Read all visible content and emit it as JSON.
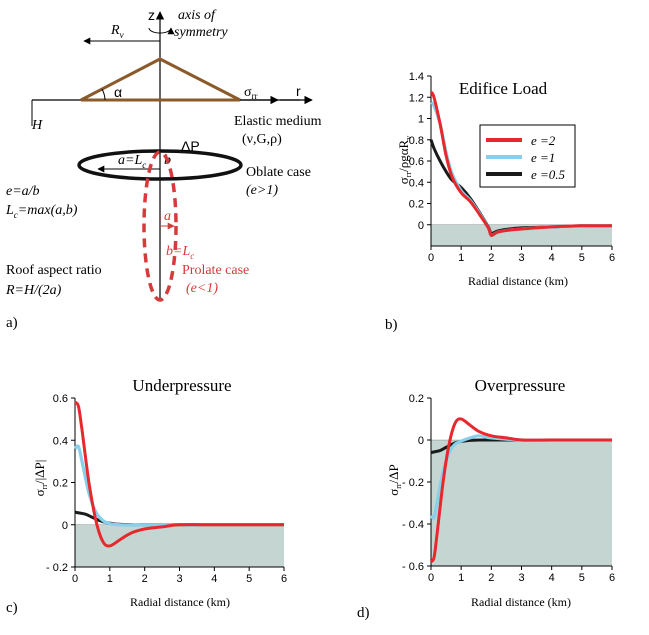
{
  "schematic": {
    "z": "z",
    "axis_line1": "axis of",
    "axis_line2": "symmetry",
    "Rv": "R",
    "Rv_sub": "v",
    "alpha": "α",
    "sigma": "σ",
    "sigma_sub": "rr",
    "r": "r",
    "H": "H",
    "elastic1": "Elastic medium",
    "elastic2": "(ν,G,ρ)",
    "a_eq_Lc": "a=L",
    "a_eq_Lc_sub": "c",
    "b": "b",
    "dP": "ΔP",
    "oblate1": "Oblate case",
    "oblate2": "(e>1)",
    "e_def": "e=a/b",
    "Lc_def": "L",
    "Lc_def_sub": "c",
    "Lc_def_rest": "=max(a,b)",
    "a_small": "a",
    "b_eq_Lc": "b=L",
    "b_eq_Lc_sub": "c",
    "roof1": "Roof aspect ratio",
    "roof2": "R=H/(2a)",
    "prolate1": "Prolate case",
    "prolate2": "(e<1)",
    "brown": "#8B5A2B",
    "red": "#D63A3A"
  },
  "panel_labels": {
    "a": "a)",
    "b": "b)",
    "c": "c)",
    "d": "d)"
  },
  "legend": [
    {
      "label": "e =2",
      "color": "#E8282D"
    },
    {
      "label": "e =1",
      "color": "#88CFEB"
    },
    {
      "label": "e =0.5",
      "color": "#1A1A1A"
    }
  ],
  "fill_color": "#C5D6D2",
  "chart_data": [
    {
      "type": "line",
      "title": "Edifice Load",
      "xlabel": "Radial distance (km)",
      "ylabel": "σrr/ρgαRv",
      "xlim": [
        0,
        6
      ],
      "ylim": [
        -0.2,
        1.4
      ],
      "xticks": [
        0,
        1,
        2,
        3,
        4,
        5,
        6
      ],
      "yticks": [
        0,
        0.2,
        0.4,
        0.6,
        0.8,
        1,
        1.2,
        1.4
      ],
      "yticklabels": [
        "0",
        "0.2",
        "0.4",
        "0.6",
        "0.8",
        "1",
        "1.2",
        "1.4"
      ],
      "series": [
        {
          "name": "e =2",
          "x": [
            0,
            0.1,
            0.3,
            0.5,
            0.7,
            1.0,
            1.3,
            1.6,
            1.9,
            2.0,
            2.2,
            2.6,
            3.0,
            4.0,
            5.0,
            6.0
          ],
          "y": [
            1.25,
            1.2,
            0.95,
            0.65,
            0.45,
            0.3,
            0.22,
            0.1,
            -0.03,
            -0.1,
            -0.07,
            -0.05,
            -0.04,
            -0.02,
            -0.01,
            -0.01
          ]
        },
        {
          "name": "e =1",
          "x": [
            0,
            0.1,
            0.3,
            0.5,
            0.7,
            1.0,
            1.3,
            1.6,
            1.9,
            2.0,
            2.2,
            2.6,
            3.0,
            4.0,
            5.0,
            6.0
          ],
          "y": [
            1.15,
            1.12,
            0.95,
            0.68,
            0.48,
            0.32,
            0.23,
            0.11,
            -0.03,
            -0.1,
            -0.07,
            -0.05,
            -0.04,
            -0.02,
            -0.01,
            -0.01
          ]
        },
        {
          "name": "e =0.5",
          "x": [
            0,
            0.1,
            0.3,
            0.5,
            0.7,
            1.0,
            1.3,
            1.6,
            1.9,
            2.0,
            2.2,
            2.6,
            3.0,
            4.0,
            5.0,
            6.0
          ],
          "y": [
            0.8,
            0.72,
            0.6,
            0.5,
            0.42,
            0.35,
            0.25,
            0.12,
            -0.02,
            -0.08,
            -0.06,
            -0.04,
            -0.03,
            -0.02,
            -0.01,
            -0.01
          ]
        }
      ]
    },
    {
      "type": "line",
      "title": "Underpressure",
      "xlabel": "Radial distance (km)",
      "ylabel": "σrr/|ΔP|",
      "xlim": [
        0,
        6
      ],
      "ylim": [
        -0.2,
        0.6
      ],
      "xticks": [
        0,
        1,
        2,
        3,
        4,
        5,
        6
      ],
      "yticks": [
        -0.2,
        0,
        0.2,
        0.4,
        0.6
      ],
      "yticklabels": [
        "- 0.2",
        "0",
        "0.2",
        "0.4",
        "0.6"
      ],
      "series": [
        {
          "name": "e =2",
          "x": [
            0,
            0.1,
            0.2,
            0.4,
            0.6,
            0.8,
            1.0,
            1.3,
            1.6,
            2.0,
            2.5,
            3.0,
            4.0,
            5.0,
            6.0
          ],
          "y": [
            0.58,
            0.56,
            0.45,
            0.2,
            0.02,
            -0.08,
            -0.1,
            -0.07,
            -0.04,
            -0.02,
            -0.01,
            0,
            0,
            0,
            0
          ]
        },
        {
          "name": "e =1",
          "x": [
            0,
            0.1,
            0.2,
            0.4,
            0.6,
            0.8,
            1.0,
            1.3,
            1.6,
            2.0,
            3.0,
            4.0,
            6.0
          ],
          "y": [
            0.36,
            0.37,
            0.3,
            0.15,
            0.06,
            0.02,
            0.005,
            0,
            -0.002,
            0,
            0,
            0,
            0
          ]
        },
        {
          "name": "e =0.5",
          "x": [
            0,
            0.15,
            0.3,
            0.5,
            0.7,
            0.9,
            1.2,
            1.6,
            2.0,
            3.0,
            4.0,
            6.0
          ],
          "y": [
            0.06,
            0.055,
            0.05,
            0.035,
            0.02,
            0.01,
            0.003,
            0,
            0,
            0,
            0,
            0
          ]
        }
      ]
    },
    {
      "type": "line",
      "title": "Overpressure",
      "xlabel": "Radial distance (km)",
      "ylabel": "σrr/ΔP",
      "xlim": [
        0,
        6
      ],
      "ylim": [
        -0.6,
        0.2
      ],
      "xticks": [
        0,
        1,
        2,
        3,
        4,
        5,
        6
      ],
      "yticks": [
        -0.6,
        -0.4,
        -0.2,
        0,
        0.2
      ],
      "yticklabels": [
        "- 0.6",
        "- 0.4",
        "- 0.2",
        "0",
        "0.2"
      ],
      "series": [
        {
          "name": "e =2",
          "x": [
            0,
            0.1,
            0.2,
            0.4,
            0.6,
            0.8,
            1.0,
            1.3,
            1.6,
            2.0,
            2.5,
            3.0,
            4.0,
            5.0,
            6.0
          ],
          "y": [
            -0.58,
            -0.56,
            -0.45,
            -0.2,
            -0.02,
            0.08,
            0.1,
            0.07,
            0.04,
            0.02,
            0.01,
            0,
            0,
            0,
            0
          ]
        },
        {
          "name": "e =1",
          "x": [
            0,
            0.1,
            0.2,
            0.4,
            0.6,
            0.8,
            1.0,
            1.3,
            1.6,
            2.0,
            3.0,
            4.0,
            6.0
          ],
          "y": [
            -0.36,
            -0.37,
            -0.3,
            -0.15,
            -0.06,
            -0.02,
            -0.005,
            0.01,
            0.02,
            0.01,
            0,
            0,
            0
          ]
        },
        {
          "name": "e =0.5",
          "x": [
            0,
            0.15,
            0.3,
            0.5,
            0.7,
            0.9,
            1.2,
            1.6,
            2.0,
            3.0,
            4.0,
            6.0
          ],
          "y": [
            -0.06,
            -0.055,
            -0.05,
            -0.035,
            -0.02,
            -0.01,
            -0.003,
            0,
            0,
            0,
            0,
            0
          ]
        }
      ]
    }
  ]
}
